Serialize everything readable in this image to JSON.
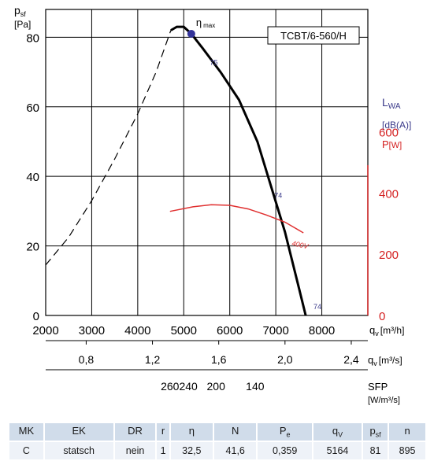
{
  "chart_data": {
    "type": "line",
    "model_label": "TCBT/6-560/H",
    "y_axis": {
      "symbol": "p",
      "sub": "sf",
      "unit": "[Pa]",
      "ticks": [
        "0",
        "20",
        "40",
        "60",
        "80"
      ],
      "ylim": [
        0,
        88
      ]
    },
    "x_axis": {
      "symbol": "q",
      "sub": "v",
      "unit": "[m³/h]",
      "ticks": [
        "2000",
        "3000",
        "4000",
        "5000",
        "6000",
        "7000",
        "8000"
      ],
      "xlim": [
        2000,
        9000
      ]
    },
    "x_axis_2": {
      "symbol": "q",
      "sub": "v",
      "unit": "[m³/s]",
      "ticks": [
        "0,8",
        "1,2",
        "1,6",
        "2,0",
        "2,4"
      ]
    },
    "sfp_axis": {
      "label": "SFP",
      "unit": "[W/m³/s]",
      "ticks": [
        "260",
        "240",
        "200",
        "140"
      ]
    },
    "right_labels": {
      "lwa": "L",
      "lwa_sub": "WA",
      "lwa_unit": "[dB(A)]",
      "power": "P",
      "power_unit": "[W]"
    },
    "power_axis": {
      "ticks": [
        "0",
        "200",
        "400",
        "600"
      ],
      "ylim": [
        0,
        1000
      ]
    },
    "eta_label": {
      "symbol": "η",
      "sub": "max"
    },
    "sound_labels": [
      "75",
      "74",
      "74"
    ],
    "power_curve_label": "400V",
    "series": [
      {
        "style": "dashed",
        "x": [
          2000,
          2500,
          3000,
          3500,
          4000,
          4400,
          4720
        ],
        "y": [
          14.5,
          22.5,
          33,
          45,
          58,
          70,
          82
        ]
      },
      {
        "style": "solid",
        "x": [
          4720,
          4850,
          5000,
          5164,
          5400,
          5800,
          6200,
          6600,
          6900,
          7200,
          7500,
          7650
        ],
        "y": [
          82,
          83,
          83,
          81,
          77,
          70,
          62,
          50,
          37,
          24,
          8,
          0
        ]
      },
      {
        "style": "power",
        "x": [
          4700,
          5200,
          5600,
          6000,
          6400,
          6800,
          7200,
          7600
        ],
        "y": [
          340,
          355,
          362,
          360,
          348,
          328,
          305,
          270
        ]
      }
    ],
    "eta_max_point": {
      "x": 5164,
      "y": 81
    },
    "sound_label_x": [
      5500,
      6900,
      7750
    ],
    "grid": true
  },
  "table": {
    "headers": [
      {
        "main": "MK",
        "sub": ""
      },
      {
        "main": "EK",
        "sub": ""
      },
      {
        "main": "DR",
        "sub": ""
      },
      {
        "main": "r",
        "sub": ""
      },
      {
        "main": "η",
        "sub": ""
      },
      {
        "main": "N",
        "sub": ""
      },
      {
        "main": "P",
        "sub": "e"
      },
      {
        "main": "q",
        "sub": "V"
      },
      {
        "main": "p",
        "sub": "sf"
      },
      {
        "main": "n",
        "sub": ""
      }
    ],
    "values": [
      "C",
      "statsch",
      "nein",
      "1",
      "32,5",
      "41,6",
      "0,359",
      "5164",
      "81",
      "895"
    ]
  },
  "colors": {
    "grid": "#000000",
    "curve": "#000000",
    "power": "#e03030",
    "power_axis": "#d42020",
    "blue_text": "#3a3a8a",
    "eta_dot": "#34349a",
    "table_header": "#d0dcea",
    "table_row": "#eef2f8"
  }
}
